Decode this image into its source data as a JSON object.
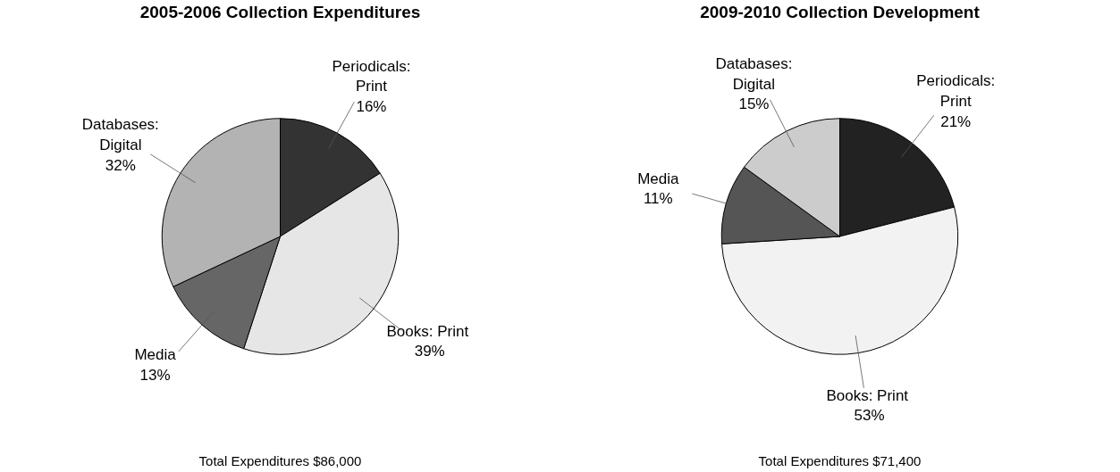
{
  "chart_data": [
    {
      "type": "pie",
      "title": "2005-2006 Collection Expenditures",
      "categories": [
        "Periodicals:\nPrint",
        "Books:  Print",
        "Media",
        "Databases:\nDigital"
      ],
      "values": [
        16,
        39,
        13,
        32
      ],
      "colors": [
        "#333333",
        "#e6e6e6",
        "#666666",
        "#b3b3b3"
      ],
      "value_labels": [
        "16%",
        "39%",
        "13%",
        "32%"
      ],
      "annotations": [
        "Total Expenditures $86,000"
      ]
    },
    {
      "type": "pie",
      "title": "2009-2010 Collection Development",
      "categories": [
        "Periodicals:\nPrint",
        "Books:  Print",
        "Media",
        "Databases:\nDigital"
      ],
      "values": [
        21,
        53,
        11,
        15
      ],
      "colors": [
        "#222222",
        "#f2f2f2",
        "#555555",
        "#cccccc"
      ],
      "value_labels": [
        "21%",
        "53%",
        "11%",
        "15%"
      ],
      "annotations": [
        "Total Expenditures $71,400"
      ]
    }
  ]
}
